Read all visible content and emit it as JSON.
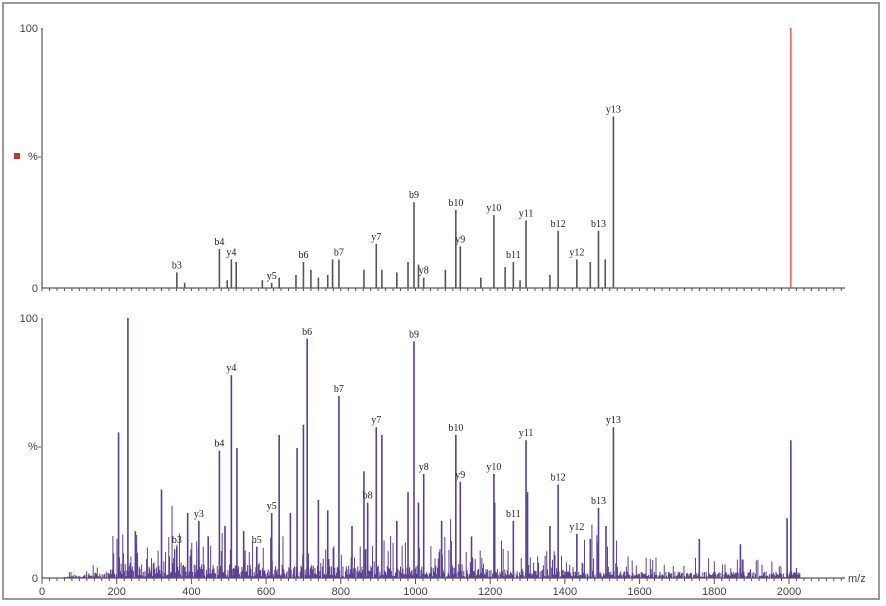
{
  "chart_data": [
    {
      "type": "bar",
      "panel": "top",
      "y_ticks": [
        "100",
        "%-",
        "0"
      ],
      "ylim": [
        0,
        100
      ],
      "xlim": [
        0,
        2150
      ],
      "legend_marker_color": "#c0392b",
      "precursor": {
        "mz": 2005,
        "intensity": 100,
        "color": "#e05050"
      },
      "bar_color": "#555555",
      "peaks": [
        {
          "mz": 361,
          "intensity": 6,
          "label": "b3"
        },
        {
          "mz": 382,
          "intensity": 2,
          "label": ""
        },
        {
          "mz": 475,
          "intensity": 15,
          "label": "b4"
        },
        {
          "mz": 496,
          "intensity": 3,
          "label": ""
        },
        {
          "mz": 507,
          "intensity": 11,
          "label": "y4"
        },
        {
          "mz": 520,
          "intensity": 10,
          "label": ""
        },
        {
          "mz": 590,
          "intensity": 3,
          "label": ""
        },
        {
          "mz": 615,
          "intensity": 2,
          "label": "y5"
        },
        {
          "mz": 635,
          "intensity": 4,
          "label": ""
        },
        {
          "mz": 680,
          "intensity": 5,
          "label": ""
        },
        {
          "mz": 700,
          "intensity": 10,
          "label": "b6"
        },
        {
          "mz": 720,
          "intensity": 7,
          "label": ""
        },
        {
          "mz": 740,
          "intensity": 4,
          "label": ""
        },
        {
          "mz": 765,
          "intensity": 5,
          "label": ""
        },
        {
          "mz": 778,
          "intensity": 11,
          "label": ""
        },
        {
          "mz": 795,
          "intensity": 11,
          "label": "b7"
        },
        {
          "mz": 862,
          "intensity": 7,
          "label": ""
        },
        {
          "mz": 895,
          "intensity": 17,
          "label": "y7"
        },
        {
          "mz": 910,
          "intensity": 7,
          "label": ""
        },
        {
          "mz": 950,
          "intensity": 6,
          "label": ""
        },
        {
          "mz": 980,
          "intensity": 10,
          "label": ""
        },
        {
          "mz": 996,
          "intensity": 33,
          "label": "b9"
        },
        {
          "mz": 1008,
          "intensity": 9,
          "label": ""
        },
        {
          "mz": 1022,
          "intensity": 4,
          "label": "y8"
        },
        {
          "mz": 1080,
          "intensity": 7,
          "label": ""
        },
        {
          "mz": 1108,
          "intensity": 30,
          "label": "b10"
        },
        {
          "mz": 1120,
          "intensity": 16,
          "label": "y9"
        },
        {
          "mz": 1175,
          "intensity": 4,
          "label": ""
        },
        {
          "mz": 1210,
          "intensity": 28,
          "label": "y10"
        },
        {
          "mz": 1240,
          "intensity": 8,
          "label": ""
        },
        {
          "mz": 1262,
          "intensity": 10,
          "label": "b11"
        },
        {
          "mz": 1280,
          "intensity": 3,
          "label": ""
        },
        {
          "mz": 1296,
          "intensity": 26,
          "label": "y11"
        },
        {
          "mz": 1360,
          "intensity": 5,
          "label": ""
        },
        {
          "mz": 1382,
          "intensity": 22,
          "label": "b12"
        },
        {
          "mz": 1432,
          "intensity": 11,
          "label": "y12"
        },
        {
          "mz": 1468,
          "intensity": 10,
          "label": ""
        },
        {
          "mz": 1490,
          "intensity": 22,
          "label": "b13"
        },
        {
          "mz": 1508,
          "intensity": 11,
          "label": ""
        },
        {
          "mz": 1530,
          "intensity": 66,
          "label": "y13"
        }
      ]
    },
    {
      "type": "bar",
      "panel": "bottom",
      "x_ticks": [
        "0",
        "200",
        "400",
        "600",
        "800",
        "1000",
        "1200",
        "1400",
        "1600",
        "1800",
        "2000"
      ],
      "y_ticks": [
        "100",
        "%-",
        "0"
      ],
      "xlabel": "m/z",
      "ylim": [
        0,
        100
      ],
      "xlim": [
        0,
        2150
      ],
      "bar_color": "#5a3f91",
      "peaks": [
        {
          "mz": 205,
          "intensity": 56,
          "label": ""
        },
        {
          "mz": 230,
          "intensity": 100,
          "label": ""
        },
        {
          "mz": 250,
          "intensity": 18,
          "label": ""
        },
        {
          "mz": 320,
          "intensity": 34,
          "label": ""
        },
        {
          "mz": 361,
          "intensity": 12,
          "label": "b3"
        },
        {
          "mz": 390,
          "intensity": 25,
          "label": ""
        },
        {
          "mz": 420,
          "intensity": 22,
          "label": "y3"
        },
        {
          "mz": 445,
          "intensity": 16,
          "label": ""
        },
        {
          "mz": 475,
          "intensity": 49,
          "label": "b4"
        },
        {
          "mz": 490,
          "intensity": 20,
          "label": ""
        },
        {
          "mz": 507,
          "intensity": 78,
          "label": "y4"
        },
        {
          "mz": 522,
          "intensity": 50,
          "label": ""
        },
        {
          "mz": 540,
          "intensity": 18,
          "label": ""
        },
        {
          "mz": 575,
          "intensity": 12,
          "label": "b5"
        },
        {
          "mz": 615,
          "intensity": 25,
          "label": "y5"
        },
        {
          "mz": 635,
          "intensity": 55,
          "label": ""
        },
        {
          "mz": 665,
          "intensity": 25,
          "label": ""
        },
        {
          "mz": 683,
          "intensity": 50,
          "label": ""
        },
        {
          "mz": 700,
          "intensity": 59,
          "label": ""
        },
        {
          "mz": 710,
          "intensity": 92,
          "label": "b6"
        },
        {
          "mz": 740,
          "intensity": 30,
          "label": ""
        },
        {
          "mz": 765,
          "intensity": 26,
          "label": ""
        },
        {
          "mz": 795,
          "intensity": 70,
          "label": "b7"
        },
        {
          "mz": 830,
          "intensity": 20,
          "label": ""
        },
        {
          "mz": 862,
          "intensity": 41,
          "label": ""
        },
        {
          "mz": 872,
          "intensity": 29,
          "label": "b8"
        },
        {
          "mz": 895,
          "intensity": 58,
          "label": "y7"
        },
        {
          "mz": 910,
          "intensity": 55,
          "label": ""
        },
        {
          "mz": 950,
          "intensity": 22,
          "label": ""
        },
        {
          "mz": 980,
          "intensity": 33,
          "label": ""
        },
        {
          "mz": 996,
          "intensity": 91,
          "label": "b9"
        },
        {
          "mz": 1008,
          "intensity": 29,
          "label": ""
        },
        {
          "mz": 1022,
          "intensity": 40,
          "label": "y8"
        },
        {
          "mz": 1070,
          "intensity": 22,
          "label": ""
        },
        {
          "mz": 1108,
          "intensity": 55,
          "label": "b10"
        },
        {
          "mz": 1120,
          "intensity": 37,
          "label": "y9"
        },
        {
          "mz": 1150,
          "intensity": 16,
          "label": ""
        },
        {
          "mz": 1210,
          "intensity": 40,
          "label": "y10"
        },
        {
          "mz": 1212,
          "intensity": 29,
          "label": ""
        },
        {
          "mz": 1262,
          "intensity": 22,
          "label": "b11"
        },
        {
          "mz": 1296,
          "intensity": 53,
          "label": "y11"
        },
        {
          "mz": 1300,
          "intensity": 33,
          "label": ""
        },
        {
          "mz": 1360,
          "intensity": 20,
          "label": ""
        },
        {
          "mz": 1382,
          "intensity": 36,
          "label": "b12"
        },
        {
          "mz": 1432,
          "intensity": 17,
          "label": "y12"
        },
        {
          "mz": 1468,
          "intensity": 15,
          "label": ""
        },
        {
          "mz": 1490,
          "intensity": 27,
          "label": "b13"
        },
        {
          "mz": 1510,
          "intensity": 20,
          "label": ""
        },
        {
          "mz": 1530,
          "intensity": 58,
          "label": "y13"
        },
        {
          "mz": 1760,
          "intensity": 15,
          "label": ""
        },
        {
          "mz": 1870,
          "intensity": 13,
          "label": ""
        },
        {
          "mz": 1995,
          "intensity": 23,
          "label": ""
        },
        {
          "mz": 2005,
          "intensity": 53,
          "label": ""
        }
      ]
    }
  ]
}
